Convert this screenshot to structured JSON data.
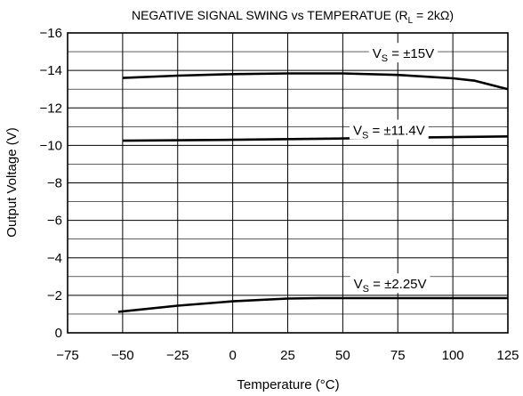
{
  "chart_data": {
    "type": "line",
    "title": {
      "main": "NEGATIVE SIGNAL SWING vs TEMPERATUE (R",
      "sub": "L",
      "tail": " = 2kΩ)"
    },
    "xlabel": "Temperature (°C)",
    "ylabel": "Output Voltage (V)",
    "xlim": [
      -75,
      125
    ],
    "ylim": [
      0,
      -16
    ],
    "x_ticks": [
      -75,
      -50,
      -25,
      0,
      25,
      50,
      75,
      100,
      125
    ],
    "x_tick_labels": [
      "−75",
      "−50",
      "−25",
      "0",
      "25",
      "50",
      "75",
      "100",
      "125"
    ],
    "y_ticks": [
      -16,
      -14,
      -12,
      -10,
      -8,
      -6,
      -4,
      -2,
      0
    ],
    "y_tick_labels": [
      "−16",
      "−14",
      "−12",
      "−10",
      "−8",
      "−6",
      "−4",
      "−2",
      "0"
    ],
    "grid": true,
    "series": [
      {
        "label_main": "V",
        "label_sub": "S",
        "label_tail": " = ±15V",
        "label_at": [
          77.5,
          -14.9
        ],
        "x": [
          -50,
          -25,
          0,
          25,
          50,
          75,
          100,
          110,
          125
        ],
        "y": [
          -13.6,
          -13.72,
          -13.8,
          -13.84,
          -13.84,
          -13.76,
          -13.58,
          -13.45,
          -13.0
        ]
      },
      {
        "label_main": "V",
        "label_sub": "S",
        "label_tail": " = ±11.4V",
        "label_at": [
          71,
          -10.8
        ],
        "x": [
          -50,
          0,
          50,
          100,
          125
        ],
        "y": [
          -10.25,
          -10.3,
          -10.37,
          -10.44,
          -10.48
        ]
      },
      {
        "label_main": "V",
        "label_sub": "S",
        "label_tail": " = ±2.25V",
        "label_at": [
          71.5,
          -2.6
        ],
        "x": [
          -52,
          -25,
          0,
          25,
          40,
          75,
          100,
          125
        ],
        "y": [
          -1.12,
          -1.45,
          -1.68,
          -1.83,
          -1.85,
          -1.85,
          -1.85,
          -1.85
        ]
      }
    ]
  }
}
